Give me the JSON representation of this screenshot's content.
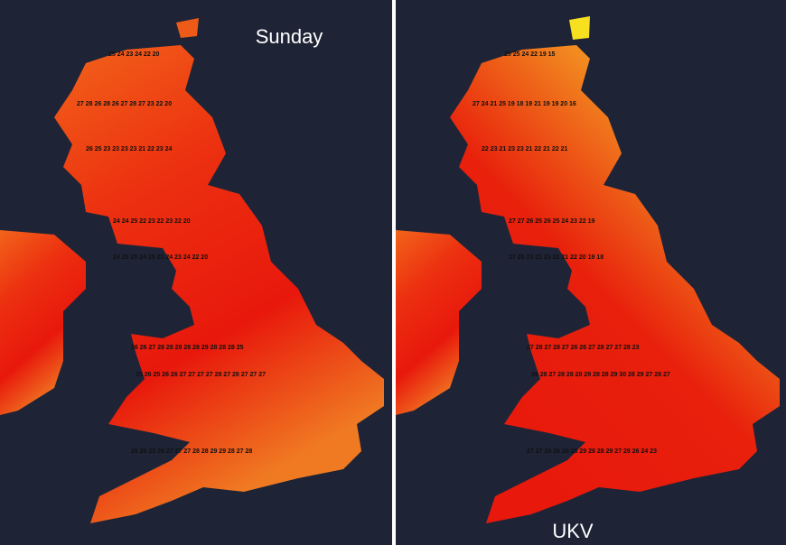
{
  "panels": [
    {
      "label": "Sunday",
      "temperature_rows": [
        "25 24 23 24 22 20",
        "27 28 26 28 26 27 28 27 23 22 20",
        "26 25 23 23 23 23 21 22 23 24",
        "24 24 25 22 23 22 23 22 20",
        "24 25 25 24 25 23 24 23 24 22 20",
        "26 26 27 28 28 28 28 28 29 28 28 28 25",
        "25 26 25 26 26 27 27 27 27 28 27 28 27 27 27",
        "26 26 25 26 27 27 27 28 28 29 29 28 27 28"
      ]
    },
    {
      "label": "UKV",
      "temperature_rows": [
        "25 25 24 22 19 15",
        "27 24 21 25 19 18 19 21 19 19 20 16",
        "22 23 21 23 23 21 22 21 22 21",
        "27 27 26 25 26 25 24 23 22 19",
        "27 25 23 21 23 22 21 22 20 19 18",
        "27 28 27 28 27 26 26 27 28 27 27 28 23",
        "26 28 27 28 28 28 29 28 28 29 30 28 29 27 28 27",
        "27 27 28 26 28 28 29 28 28 29 27 28 26 24 23"
      ]
    }
  ]
}
